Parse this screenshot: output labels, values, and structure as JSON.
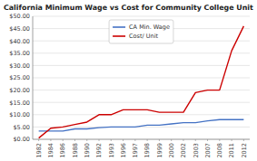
{
  "chart_data": {
    "type": "line",
    "title": "California Minimum Wage vs Cost for Community College Unit",
    "categories": [
      "1982",
      "1984",
      "1986",
      "1988",
      "1990",
      "1992",
      "1993",
      "1996",
      "1997",
      "1998",
      "1999",
      "2000",
      "2002",
      "2003",
      "2007",
      "2008",
      "2011",
      "2012"
    ],
    "series": [
      {
        "name": "CA Min. Wage",
        "color": "#4472C4",
        "values": [
          3.35,
          3.35,
          3.35,
          4.25,
          4.25,
          4.75,
          5.0,
          5.0,
          5.0,
          5.75,
          5.75,
          6.25,
          6.75,
          6.75,
          7.5,
          8.0,
          8.0,
          8.0
        ]
      },
      {
        "name": "Cost/ Unit",
        "color": "#CC0000",
        "values": [
          0.5,
          4.5,
          5.0,
          6.0,
          7.0,
          10.0,
          10.0,
          12.0,
          12.0,
          12.0,
          11.0,
          11.0,
          11.0,
          19.0,
          20.0,
          20.0,
          36.0,
          46.0
        ]
      }
    ],
    "ylim": [
      0,
      50
    ],
    "yticks": [
      {
        "value": 0,
        "label": "$0.00"
      },
      {
        "value": 5,
        "label": "$5.00"
      },
      {
        "value": 10,
        "label": "$10.00"
      },
      {
        "value": 15,
        "label": "$15.00"
      },
      {
        "value": 20,
        "label": "$20.00"
      },
      {
        "value": 25,
        "label": "$25.00"
      },
      {
        "value": 30,
        "label": "$30.00"
      },
      {
        "value": 35,
        "label": "$35.00"
      },
      {
        "value": 40,
        "label": "$40.00"
      },
      {
        "value": 45,
        "label": "$45.00"
      },
      {
        "value": 50,
        "label": "$50.00"
      }
    ],
    "grid": true,
    "legend": "upper center"
  }
}
